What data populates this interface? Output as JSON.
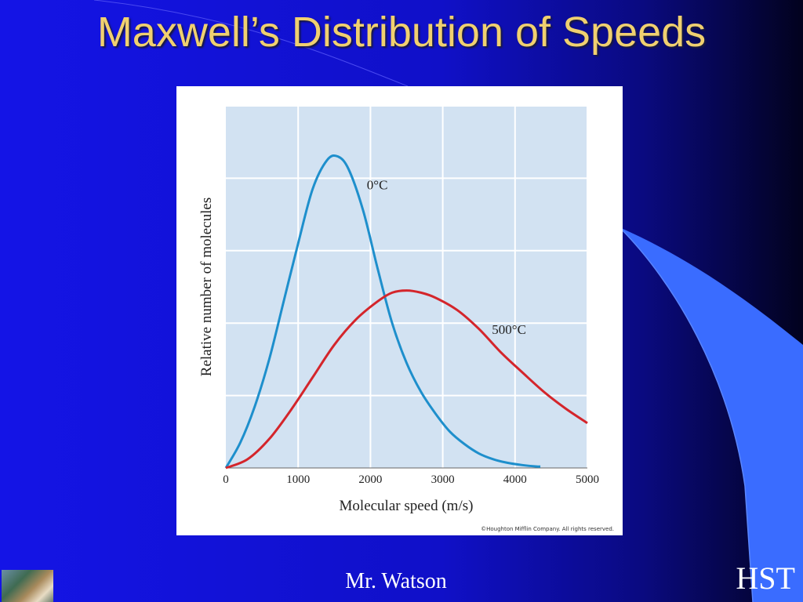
{
  "slide": {
    "title": "Maxwell’s Distribution of Speeds",
    "footer_author": "Mr. Watson",
    "footer_org": "HST",
    "colors": {
      "background": "#1414E6",
      "accent_blue": "#3A6CFF",
      "title": "#F0D070"
    },
    "logo_icon": "tiger-photo-thumbnail"
  },
  "chart_data": {
    "type": "line",
    "xlabel": "Molecular speed (m/s)",
    "ylabel": "Relative number of molecules",
    "xlim": [
      0,
      5000
    ],
    "ylim": [
      0,
      5
    ],
    "xticks": [
      "0",
      "1000",
      "2000",
      "3000",
      "4000",
      "5000"
    ],
    "grid": true,
    "credit": "©Houghton Mifflin Company. All rights reserved.",
    "series": [
      {
        "name": "0°C",
        "color": "#1E8FCC",
        "x": [
          0,
          200,
          400,
          600,
          800,
          1000,
          1200,
          1400,
          1550,
          1700,
          1900,
          2100,
          2300,
          2500,
          2700,
          2900,
          3100,
          3300,
          3500,
          3700,
          3900,
          4100,
          4300,
          4350
        ],
        "y": [
          0,
          0.35,
          0.85,
          1.5,
          2.3,
          3.1,
          3.85,
          4.25,
          4.3,
          4.12,
          3.55,
          2.75,
          2.0,
          1.45,
          1.05,
          0.75,
          0.5,
          0.33,
          0.2,
          0.12,
          0.07,
          0.04,
          0.02,
          0.02
        ]
      },
      {
        "name": "500°C",
        "color": "#D4252B",
        "x": [
          0,
          300,
          600,
          900,
          1200,
          1500,
          1800,
          2100,
          2300,
          2500,
          2700,
          2900,
          3200,
          3500,
          3800,
          4100,
          4400,
          4700,
          5000
        ],
        "y": [
          0,
          0.12,
          0.4,
          0.8,
          1.25,
          1.7,
          2.05,
          2.3,
          2.42,
          2.45,
          2.42,
          2.35,
          2.18,
          1.92,
          1.6,
          1.32,
          1.05,
          0.82,
          0.62
        ]
      }
    ]
  }
}
